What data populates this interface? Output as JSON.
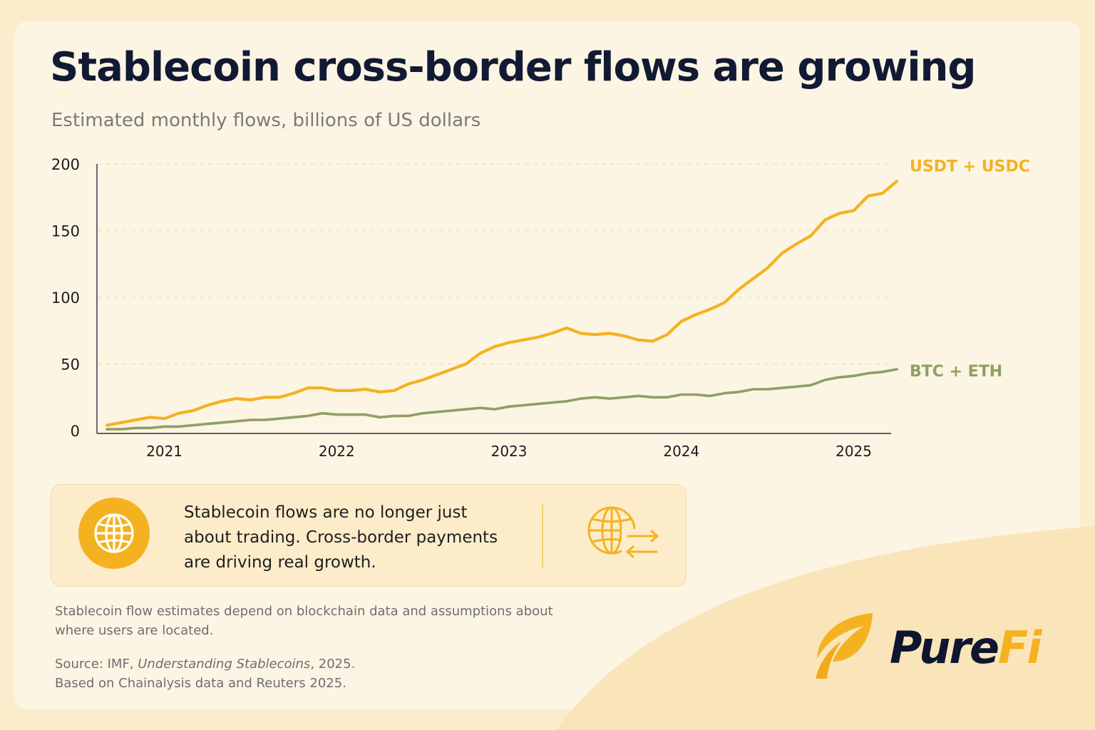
{
  "title": "Stablecoin cross-border flows are growing",
  "subtitle": "Estimated monthly flows, billions of US dollars",
  "chart_data": {
    "type": "line",
    "title": "Stablecoin cross-border flows are growing",
    "subtitle": "Estimated monthly flows, billions of US dollars",
    "xlabel": "",
    "ylabel": "",
    "ylim": [
      0,
      200
    ],
    "yticks": [
      "0",
      "50",
      "100",
      "150",
      "200"
    ],
    "xticks": [
      "2021",
      "2022",
      "2023",
      "2024",
      "2025"
    ],
    "grid": "horizontal dashed",
    "legend": "direct labels at right end of lines",
    "x": [
      "2020-10",
      "2020-11",
      "2020-12",
      "2021-01",
      "2021-02",
      "2021-03",
      "2021-04",
      "2021-05",
      "2021-06",
      "2021-07",
      "2021-08",
      "2021-09",
      "2021-10",
      "2021-11",
      "2021-12",
      "2022-01",
      "2022-02",
      "2022-03",
      "2022-04",
      "2022-05",
      "2022-06",
      "2022-07",
      "2022-08",
      "2022-09",
      "2022-10",
      "2022-11",
      "2022-12",
      "2023-01",
      "2023-02",
      "2023-03",
      "2023-04",
      "2023-05",
      "2023-06",
      "2023-07",
      "2023-08",
      "2023-09",
      "2023-10",
      "2023-11",
      "2023-12",
      "2024-01",
      "2024-02",
      "2024-03",
      "2024-04",
      "2024-05",
      "2024-06",
      "2024-07",
      "2024-08",
      "2024-09",
      "2024-10",
      "2024-11",
      "2024-12",
      "2025-01",
      "2025-02",
      "2025-03",
      "2025-04",
      "2025-05"
    ],
    "series": [
      {
        "name": "USDT + USDC",
        "color": "#f4b221",
        "values": [
          4,
          6,
          8,
          10,
          9,
          13,
          15,
          19,
          22,
          24,
          23,
          25,
          25,
          28,
          32,
          32,
          30,
          30,
          31,
          29,
          30,
          35,
          38,
          42,
          46,
          50,
          58,
          63,
          66,
          68,
          70,
          73,
          77,
          73,
          72,
          73,
          71,
          68,
          67,
          72,
          82,
          87,
          91,
          96,
          106,
          114,
          122,
          133,
          140,
          146,
          158,
          163,
          165,
          176,
          178,
          187
        ]
      },
      {
        "name": "BTC + ETH",
        "color": "#8fa063",
        "values": [
          1,
          1,
          2,
          2,
          3,
          3,
          4,
          5,
          6,
          7,
          8,
          8,
          9,
          10,
          11,
          13,
          12,
          12,
          12,
          10,
          11,
          11,
          13,
          14,
          15,
          16,
          17,
          16,
          18,
          19,
          20,
          21,
          22,
          24,
          25,
          24,
          25,
          26,
          25,
          25,
          27,
          27,
          26,
          28,
          29,
          31,
          31,
          32,
          33,
          34,
          38,
          40,
          41,
          43,
          44,
          46
        ]
      }
    ]
  },
  "insight": {
    "text": "Stablecoin flows are no longer just about trading. Cross-border payments are driving real growth.",
    "icons": [
      "globe-icon",
      "globe-transfer-icon"
    ]
  },
  "footnote": "Stablecoin flow estimates depend on blockchain data and assumptions about where users are located.",
  "source": {
    "prefix": "Source: IMF, ",
    "italic": "Understanding Stablecoins",
    "suffix": ", 2025.",
    "line2": "Based on Chainalysis data and Reuters 2025."
  },
  "logo": {
    "part1": "Pure",
    "part2": "Fi",
    "icon": "leaf-icon"
  },
  "colors": {
    "accent": "#f4b221",
    "secondary": "#8fa063",
    "title": "#121a33",
    "background": "#fdf5e4"
  }
}
